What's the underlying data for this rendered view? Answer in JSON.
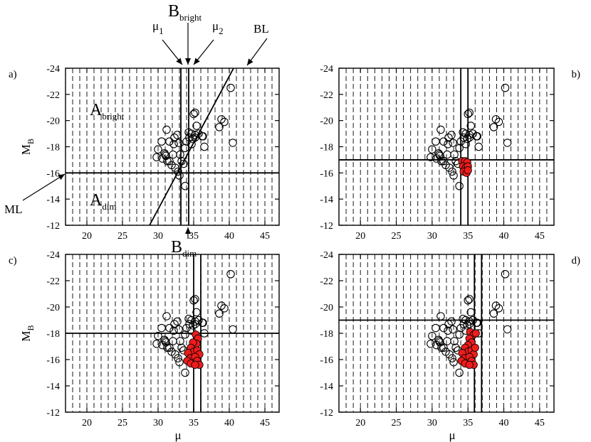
{
  "chart_data": [
    {
      "type": "scatter",
      "panel_label": "a)",
      "label_side": "left",
      "xlabel": "",
      "ylabel": "M",
      "ylabel_sub": "B",
      "xlim": [
        17,
        47
      ],
      "ylim": [
        -12,
        -24
      ],
      "y_inverted": true,
      "grid": true,
      "grid_style": "dashed",
      "xticks": [
        "20",
        "25",
        "30",
        "35",
        "40",
        "45"
      ],
      "yticks": [
        "-24",
        "-22",
        "-20",
        "-18",
        "-16",
        "-14",
        "-12"
      ],
      "ml": -16,
      "mu1": 33.2,
      "mu2": 34.3,
      "bl": {
        "x1": 28.8,
        "y1": -12,
        "x2": 40.6,
        "y2": -24
      },
      "red_points": [],
      "annotations": {
        "b_bright": "B",
        "b_bright_sub": "bright",
        "b_dim": "B",
        "b_dim_sub": "dim",
        "a_bright": "A",
        "a_bright_sub": "bright",
        "a_dim": "A",
        "a_dim_sub": "dim",
        "mu1": "μ",
        "mu1_sub": "1",
        "mu2": "μ",
        "mu2_sub": "2",
        "bl": "BL",
        "ml": "ML"
      }
    },
    {
      "type": "scatter",
      "panel_label": "b)",
      "label_side": "right",
      "xlabel": "",
      "ylabel": "",
      "xlim": [
        17,
        47
      ],
      "ylim": [
        -12,
        -24
      ],
      "y_inverted": true,
      "grid": true,
      "grid_style": "dashed",
      "xticks": [
        "20",
        "25",
        "30",
        "35",
        "40",
        "45"
      ],
      "yticks": [
        "-24",
        "-22",
        "-20",
        "-18",
        "-16",
        "-14",
        "-12"
      ],
      "ml": -17,
      "mu1": 34.0,
      "mu2": 35.0,
      "red_points": [
        [
          34.2,
          -16.9
        ],
        [
          34.6,
          -16.9
        ],
        [
          34.9,
          -16.8
        ],
        [
          34.3,
          -16.5
        ],
        [
          34.7,
          -16.4
        ],
        [
          35.0,
          -16.5
        ],
        [
          34.4,
          -16.1
        ],
        [
          34.8,
          -16.0
        ],
        [
          35.0,
          -16.2
        ]
      ]
    },
    {
      "type": "scatter",
      "panel_label": "c)",
      "label_side": "left",
      "xlabel": "μ",
      "ylabel": "M",
      "ylabel_sub": "B",
      "xlim": [
        17,
        47
      ],
      "ylim": [
        -12,
        -24
      ],
      "y_inverted": true,
      "grid": true,
      "grid_style": "dashed",
      "xticks": [
        "20",
        "25",
        "30",
        "35",
        "40",
        "45"
      ],
      "yticks": [
        "-24",
        "-22",
        "-20",
        "-18",
        "-16",
        "-14",
        "-12"
      ],
      "ml": -18,
      "mu1": 35.0,
      "mu2": 36.0,
      "red_points": [
        [
          35.3,
          -17.9
        ],
        [
          35.6,
          -17.6
        ],
        [
          35.4,
          -17.2
        ],
        [
          34.9,
          -17.3
        ],
        [
          34.6,
          -16.9
        ],
        [
          35.0,
          -16.6
        ],
        [
          35.5,
          -16.7
        ],
        [
          35.8,
          -16.4
        ],
        [
          34.2,
          -16.5
        ],
        [
          34.5,
          -16.1
        ],
        [
          34.1,
          -15.9
        ],
        [
          34.6,
          -15.7
        ],
        [
          35.2,
          -16.2
        ],
        [
          35.5,
          -15.9
        ],
        [
          35.8,
          -15.6
        ],
        [
          35.2,
          -15.6
        ]
      ]
    },
    {
      "type": "scatter",
      "panel_label": "d)",
      "label_side": "right",
      "xlabel": "μ",
      "ylabel": "",
      "xlim": [
        17,
        47
      ],
      "ylim": [
        -12,
        -24
      ],
      "y_inverted": true,
      "grid": true,
      "grid_style": "dashed",
      "xticks": [
        "20",
        "25",
        "30",
        "35",
        "40",
        "45"
      ],
      "yticks": [
        "-24",
        "-22",
        "-20",
        "-18",
        "-16",
        "-14",
        "-12"
      ],
      "ml": -19,
      "mu1": 35.9,
      "mu2": 36.9,
      "red_points": [
        [
          35.3,
          -18.1
        ],
        [
          35.8,
          -17.9
        ],
        [
          36.1,
          -18.0
        ],
        [
          35.2,
          -17.6
        ],
        [
          35.5,
          -17.3
        ],
        [
          35.0,
          -17.1
        ],
        [
          34.6,
          -16.9
        ],
        [
          35.0,
          -16.6
        ],
        [
          35.5,
          -16.7
        ],
        [
          35.8,
          -16.4
        ],
        [
          34.2,
          -16.5
        ],
        [
          34.5,
          -16.1
        ],
        [
          34.1,
          -15.9
        ],
        [
          34.6,
          -15.7
        ],
        [
          35.2,
          -16.2
        ],
        [
          35.5,
          -15.9
        ],
        [
          35.8,
          -15.6
        ],
        [
          35.2,
          -15.6
        ],
        [
          36.0,
          -16.9
        ]
      ]
    }
  ],
  "black_points": [
    [
      30.0,
      -17.8
    ],
    [
      29.8,
      -17.2
    ],
    [
      30.6,
      -17.1
    ],
    [
      31.0,
      -17.4
    ],
    [
      30.9,
      -17.5
    ],
    [
      31.1,
      -17.3
    ],
    [
      31.3,
      -16.9
    ],
    [
      31.6,
      -16.9
    ],
    [
      31.9,
      -16.6
    ],
    [
      32.1,
      -17.4
    ],
    [
      31.6,
      -18.4
    ],
    [
      32.3,
      -18.7
    ],
    [
      32.7,
      -18.9
    ],
    [
      32.9,
      -18.3
    ],
    [
      33.1,
      -17.4
    ],
    [
      33.3,
      -16.9
    ],
    [
      32.4,
      -16.4
    ],
    [
      32.8,
      -16.1
    ],
    [
      33.0,
      -15.8
    ],
    [
      33.6,
      -16.7
    ],
    [
      34.0,
      -18.4
    ],
    [
      34.4,
      -18.7
    ],
    [
      34.3,
      -19.1
    ],
    [
      34.7,
      -19.0
    ],
    [
      35.2,
      -18.9
    ],
    [
      35.7,
      -19.0
    ],
    [
      35.2,
      -18.7
    ],
    [
      34.9,
      -18.6
    ],
    [
      34.7,
      -18.2
    ],
    [
      35.4,
      -19.6
    ],
    [
      35.0,
      -20.5
    ],
    [
      35.2,
      -20.6
    ],
    [
      36.2,
      -18.8
    ],
    [
      36.5,
      -18.0
    ],
    [
      38.6,
      -19.5
    ],
    [
      38.9,
      -20.1
    ],
    [
      39.3,
      -19.9
    ],
    [
      40.2,
      -22.5
    ],
    [
      40.5,
      -18.3
    ],
    [
      33.8,
      -15.0
    ],
    [
      31.2,
      -19.3
    ],
    [
      33.8,
      -17.9
    ],
    [
      32.2,
      -18.2
    ],
    [
      30.5,
      -18.4
    ],
    [
      36.3,
      -18.8
    ]
  ]
}
